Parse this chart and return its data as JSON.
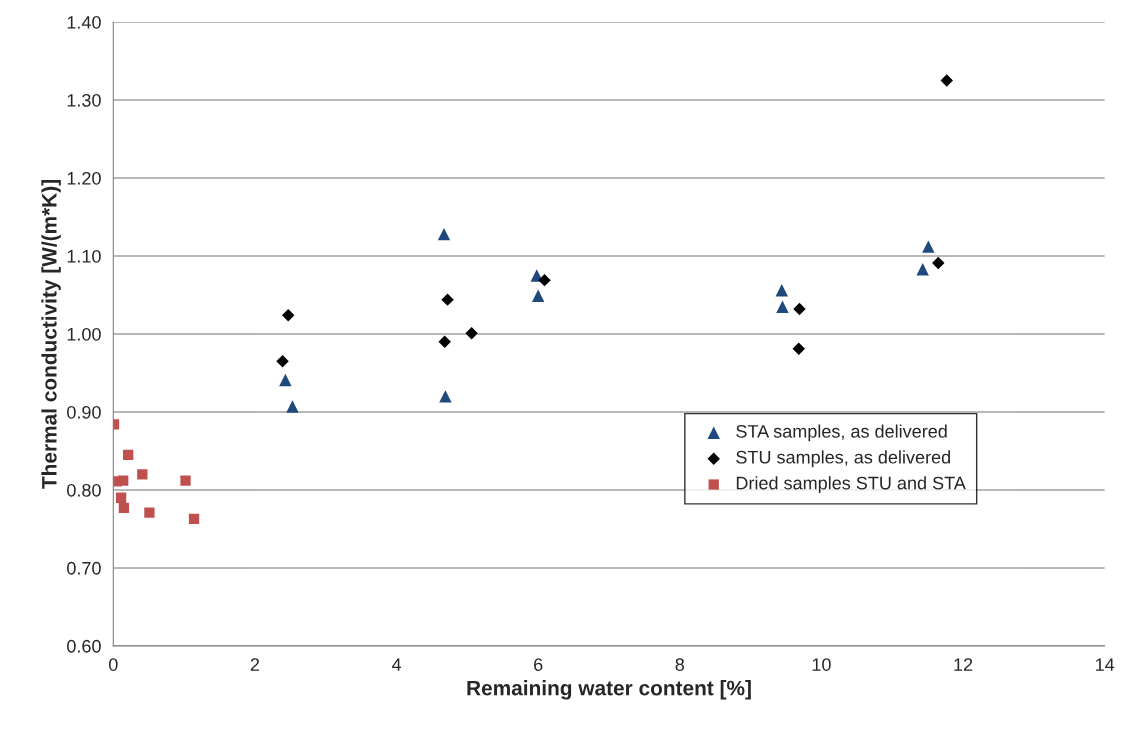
{
  "chart_data": {
    "type": "scatter",
    "xlabel": "Remaining water content [%]",
    "ylabel": "Thermal conductivity [W/(m*K)]",
    "xlim": [
      0,
      14
    ],
    "xticks": [
      0,
      2,
      4,
      6,
      8,
      10,
      12,
      14
    ],
    "ylim": [
      0.6,
      1.4
    ],
    "yticks": [
      {
        "value": 0.6,
        "label": "0.60"
      },
      {
        "value": 0.7,
        "label": "0.70"
      },
      {
        "value": 0.8,
        "label": "0.80"
      },
      {
        "value": 0.9,
        "label": "0.90"
      },
      {
        "value": 1.0,
        "label": "1.00"
      },
      {
        "value": 1.1,
        "label": "1.10"
      },
      {
        "value": 1.2,
        "label": "1.20"
      },
      {
        "value": 1.3,
        "label": "1.30"
      },
      {
        "value": 1.4,
        "label": "1.40"
      }
    ],
    "grid": "y",
    "legend": "right",
    "series": [
      {
        "name": "STA samples, as delivered",
        "color": "#1f497d",
        "marker": "triangle",
        "x": [
          2.43,
          2.53,
          4.67,
          4.69,
          5.98,
          6.0,
          9.44,
          9.45,
          11.43,
          11.51
        ],
        "values": [
          0.941,
          0.907,
          1.128,
          0.92,
          1.075,
          1.049,
          1.056,
          1.035,
          1.083,
          1.112
        ]
      },
      {
        "name": "STU samples, as delivered",
        "color": "#000000",
        "marker": "diamond",
        "x": [
          2.39,
          2.47,
          4.68,
          4.72,
          5.06,
          6.09,
          9.68,
          9.69,
          11.65,
          11.77
        ],
        "values": [
          0.965,
          1.024,
          0.99,
          1.044,
          1.001,
          1.069,
          0.981,
          1.032,
          1.091,
          1.325
        ]
      },
      {
        "name": "Dried samples STU and STA",
        "color": "#c0504d",
        "marker": "square",
        "x": [
          0.01,
          0.21,
          0.41,
          0.05,
          0.14,
          1.02,
          0.11,
          0.15,
          0.51,
          1.14
        ],
        "values": [
          0.884,
          0.845,
          0.82,
          0.811,
          0.812,
          0.812,
          0.79,
          0.777,
          0.771,
          0.763
        ]
      }
    ]
  }
}
